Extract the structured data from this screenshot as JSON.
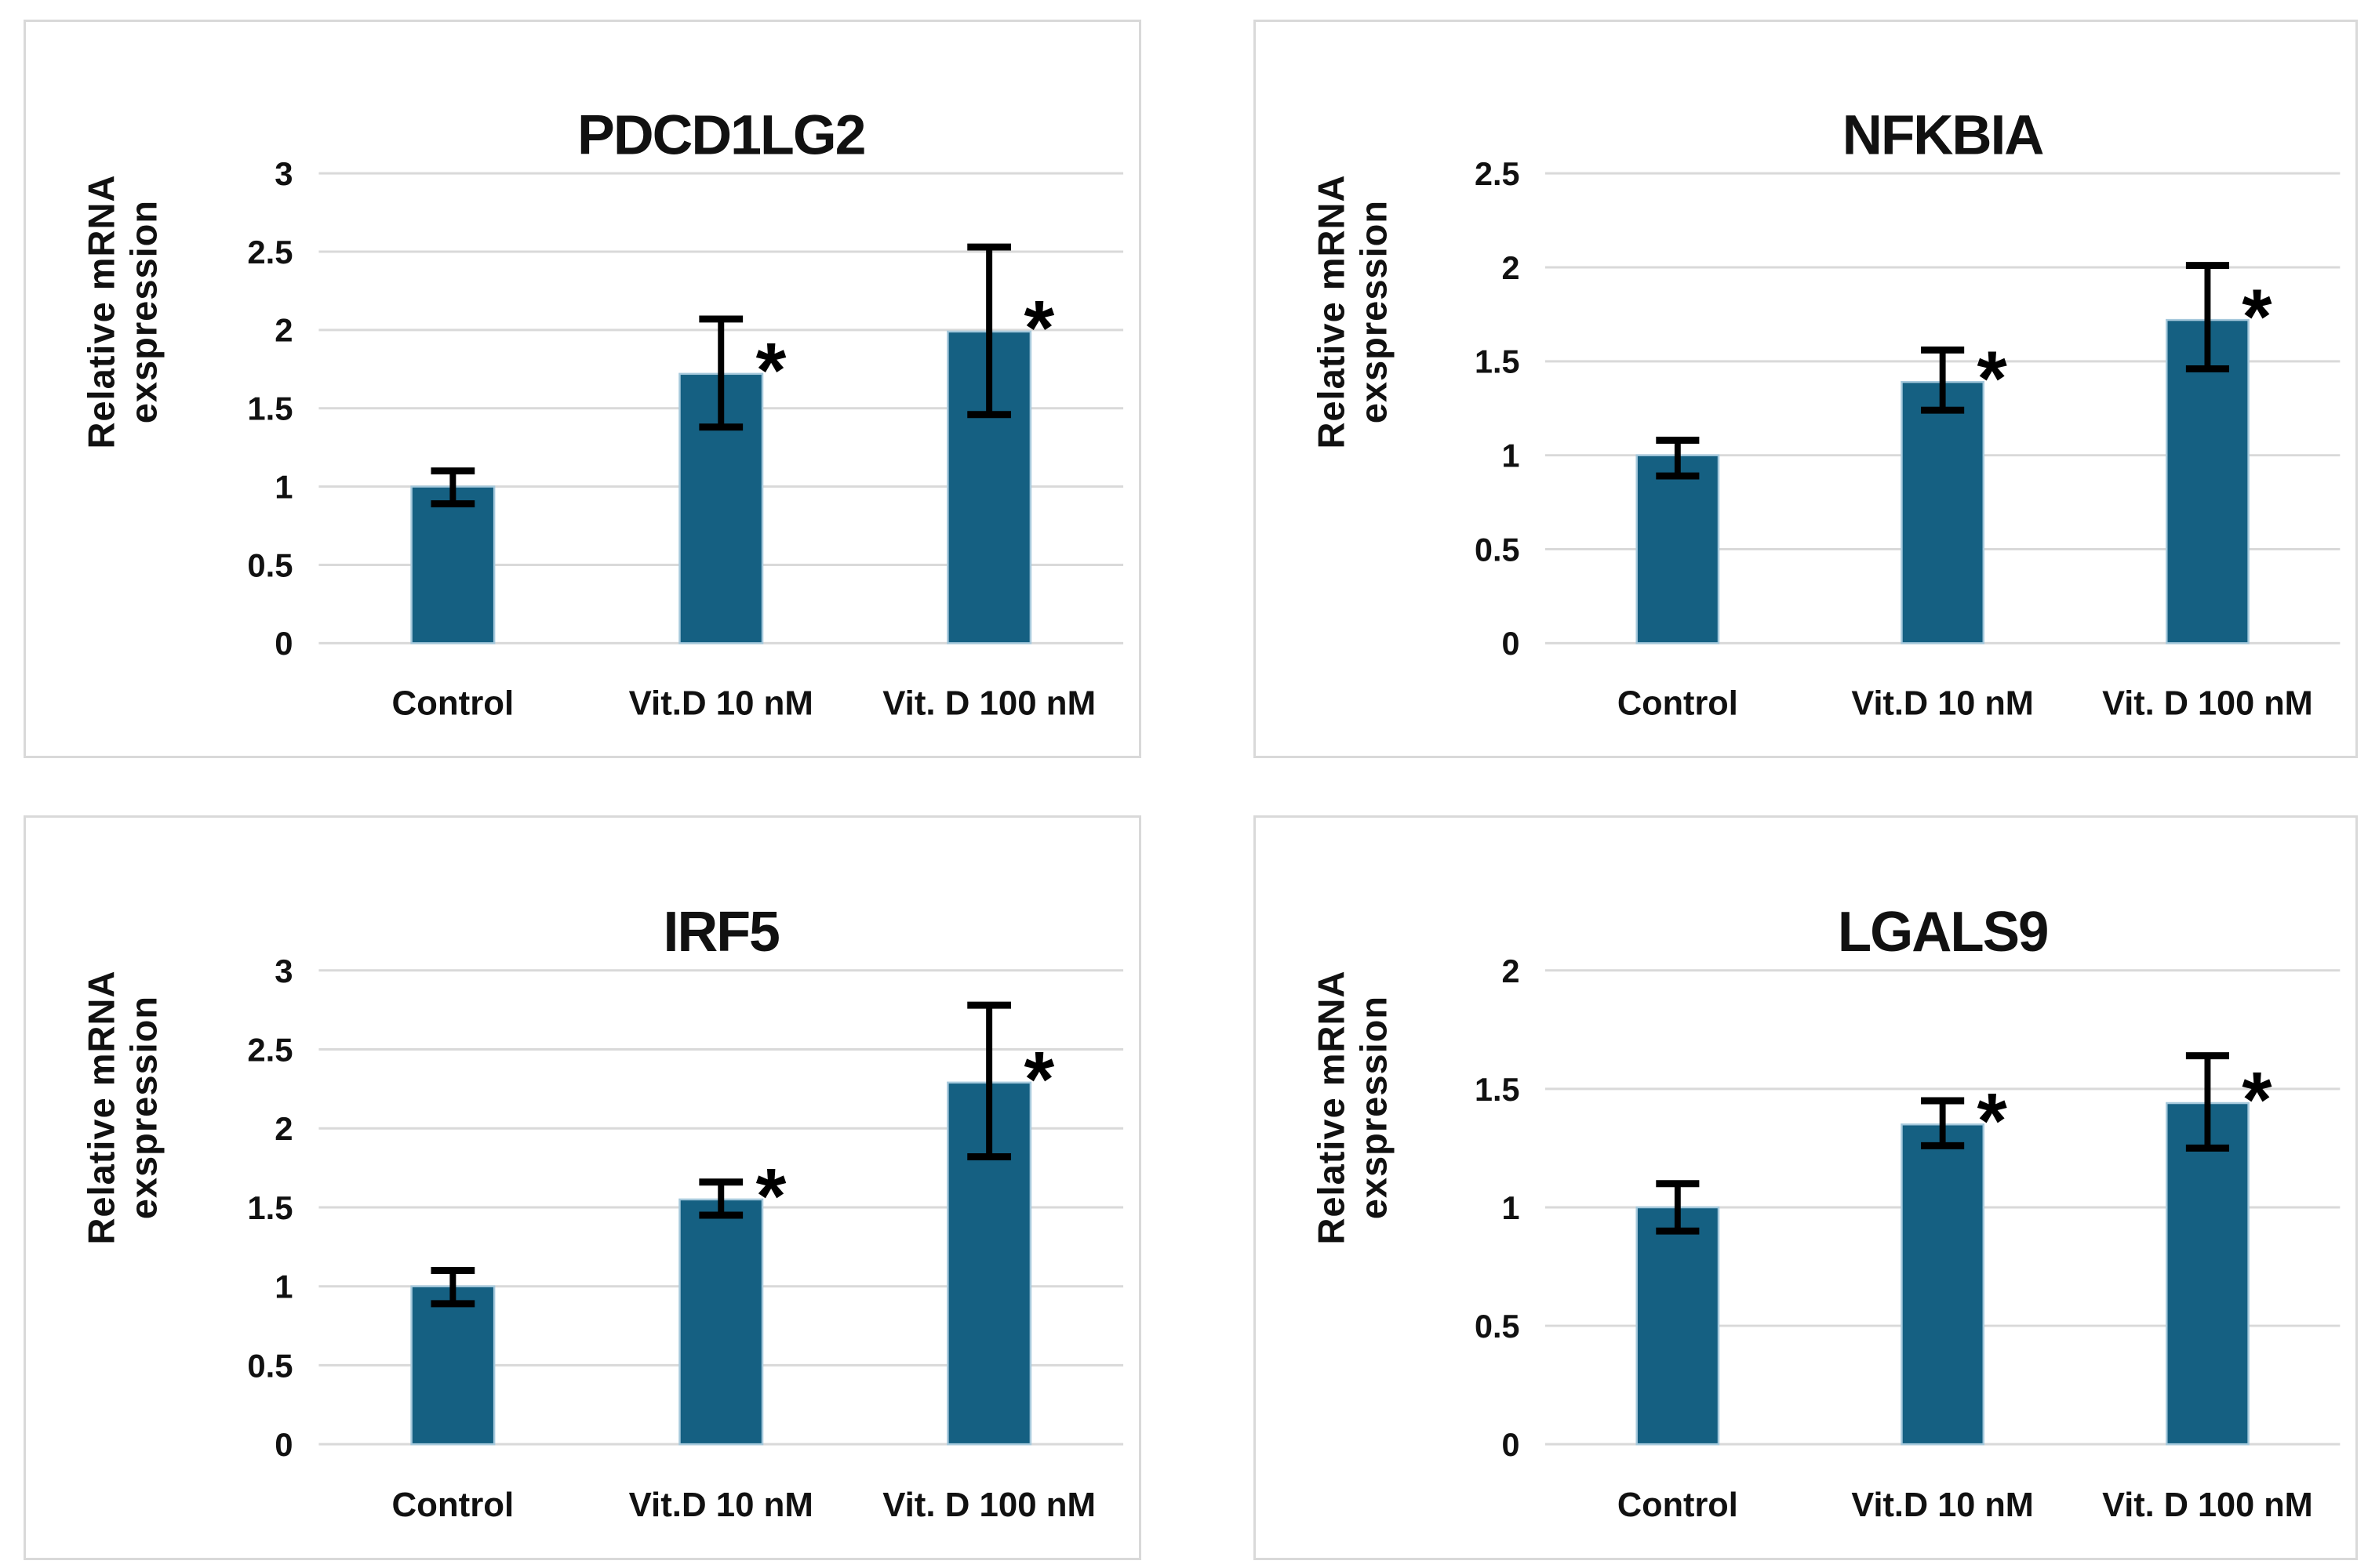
{
  "shared": {
    "ylabel_lines": [
      "Relative mRNA",
      "exspression"
    ],
    "categories": [
      "Control",
      "Vit.D 10 nM",
      "Vit. D 100 nM"
    ],
    "significance_marker": "*",
    "colors": {
      "bar": "#156082",
      "bar_edge": "#a6c9dc",
      "grid": "#d9d9d9",
      "panel_border": "#d9d9d9",
      "text": "#111111",
      "error": "#000000"
    }
  },
  "chart_data": [
    {
      "type": "bar",
      "title": "PDCD1LG2",
      "ylabel": "Relative mRNA exspression",
      "categories": [
        "Control",
        "Vit.D 10 nM",
        "Vit. D 100 nM"
      ],
      "values": [
        1.0,
        1.72,
        1.99
      ],
      "error_low": [
        0.89,
        1.38,
        1.46
      ],
      "error_high": [
        1.1,
        2.07,
        2.53
      ],
      "significant": [
        false,
        true,
        true
      ],
      "ylim": [
        0,
        3
      ],
      "yticks": [
        "0",
        "0.5",
        "1",
        "1.5",
        "2",
        "2.5",
        "3"
      ],
      "grid": true,
      "legend": false
    },
    {
      "type": "bar",
      "title": "NFKBIA",
      "ylabel": "Relative mRNA exspression",
      "categories": [
        "Control",
        "Vit.D 10 nM",
        "Vit. D 100 nM"
      ],
      "values": [
        1.0,
        1.39,
        1.72
      ],
      "error_low": [
        0.89,
        1.24,
        1.46
      ],
      "error_high": [
        1.08,
        1.56,
        2.01
      ],
      "significant": [
        false,
        true,
        true
      ],
      "ylim": [
        0,
        2.5
      ],
      "yticks": [
        "0",
        "0.5",
        "1",
        "1.5",
        "2",
        "2.5"
      ],
      "grid": true,
      "legend": false
    },
    {
      "type": "bar",
      "title": "IRF5",
      "ylabel": "Relative mRNA exspression",
      "categories": [
        "Control",
        "Vit.D 10 nM",
        "Vit. D 100 nM"
      ],
      "values": [
        1.0,
        1.55,
        2.29
      ],
      "error_low": [
        0.89,
        1.45,
        1.82
      ],
      "error_high": [
        1.1,
        1.66,
        2.78
      ],
      "significant": [
        false,
        true,
        true
      ],
      "ylim": [
        0,
        3
      ],
      "yticks": [
        "0",
        "0.5",
        "1",
        "1.5",
        "2",
        "2.5",
        "3"
      ],
      "grid": true,
      "legend": false
    },
    {
      "type": "bar",
      "title": "LGALS9",
      "ylabel": "Relative mRNA exspression",
      "categories": [
        "Control",
        "Vit.D 10 nM",
        "Vit. D 100 nM"
      ],
      "values": [
        1.0,
        1.35,
        1.44
      ],
      "error_low": [
        0.9,
        1.26,
        1.25
      ],
      "error_high": [
        1.1,
        1.45,
        1.64
      ],
      "significant": [
        false,
        true,
        true
      ],
      "ylim": [
        0,
        2
      ],
      "yticks": [
        "0",
        "0.5",
        "1",
        "1.5",
        "2"
      ],
      "grid": true,
      "legend": false
    }
  ]
}
